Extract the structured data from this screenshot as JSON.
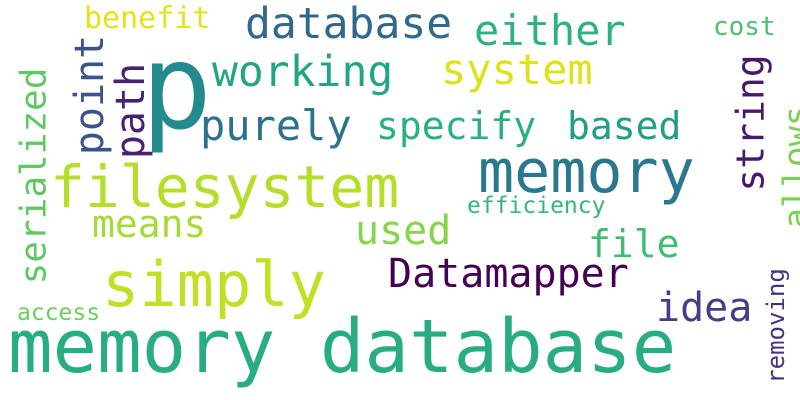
{
  "words": [
    {
      "text": "p",
      "color": "#238a8d"
    },
    {
      "text": "memory database",
      "color": "#27ad81"
    },
    {
      "text": "filesystem",
      "color": "#b5de2b"
    },
    {
      "text": "memory",
      "color": "#2a788e"
    },
    {
      "text": "simply",
      "color": "#c2df23"
    },
    {
      "text": "database",
      "color": "#31688e"
    },
    {
      "text": "Datamapper",
      "color": "#440154"
    },
    {
      "text": "working",
      "color": "#21a685"
    },
    {
      "text": "system",
      "color": "#dde318"
    },
    {
      "text": "either",
      "color": "#2db27d"
    },
    {
      "text": "purely",
      "color": "#2c728e"
    },
    {
      "text": "specify",
      "color": "#2ab07f"
    },
    {
      "text": "based",
      "color": "#1f9e89"
    },
    {
      "text": "path",
      "color": "#482173"
    },
    {
      "text": "point",
      "color": "#3b528b"
    },
    {
      "text": "string",
      "color": "#48186a"
    },
    {
      "text": "serialized",
      "color": "#5ec962"
    },
    {
      "text": "allows",
      "color": "#7ad151"
    },
    {
      "text": "means",
      "color": "#a5db36"
    },
    {
      "text": "used",
      "color": "#86d549"
    },
    {
      "text": "file",
      "color": "#3fbc73"
    },
    {
      "text": "idea",
      "color": "#433e85"
    },
    {
      "text": "benefit",
      "color": "#e2e418"
    },
    {
      "text": "cost",
      "color": "#4ac16d"
    },
    {
      "text": "efficiency",
      "color": "#35b779"
    },
    {
      "text": "access",
      "color": "#6ccd5a"
    },
    {
      "text": "removing",
      "color": "#46327e"
    }
  ]
}
